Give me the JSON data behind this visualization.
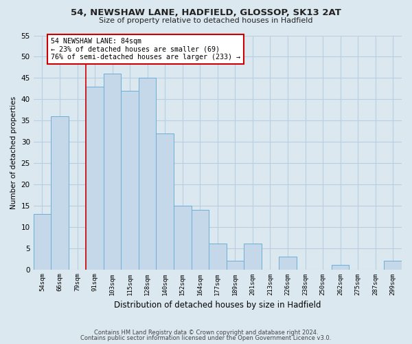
{
  "title": "54, NEWSHAW LANE, HADFIELD, GLOSSOP, SK13 2AT",
  "subtitle": "Size of property relative to detached houses in Hadfield",
  "xlabel": "Distribution of detached houses by size in Hadfield",
  "ylabel": "Number of detached properties",
  "bin_labels": [
    "54sqm",
    "66sqm",
    "79sqm",
    "91sqm",
    "103sqm",
    "115sqm",
    "128sqm",
    "140sqm",
    "152sqm",
    "164sqm",
    "177sqm",
    "189sqm",
    "201sqm",
    "213sqm",
    "226sqm",
    "238sqm",
    "250sqm",
    "262sqm",
    "275sqm",
    "287sqm",
    "299sqm"
  ],
  "bar_values": [
    13,
    36,
    0,
    43,
    46,
    42,
    45,
    32,
    15,
    14,
    6,
    2,
    6,
    0,
    3,
    0,
    0,
    1,
    0,
    0,
    2
  ],
  "bar_color": "#c5d8ea",
  "bar_edge_color": "#6baed6",
  "ylim": [
    0,
    55
  ],
  "yticks": [
    0,
    5,
    10,
    15,
    20,
    25,
    30,
    35,
    40,
    45,
    50,
    55
  ],
  "vline_x_idx": 2,
  "vline_color": "#cc0000",
  "annotation_title": "54 NEWSHAW LANE: 84sqm",
  "annotation_line2": "← 23% of detached houses are smaller (69)",
  "annotation_line3": "76% of semi-detached houses are larger (233) →",
  "annotation_box_color": "#ffffff",
  "annotation_border_color": "#cc0000",
  "footer_line1": "Contains HM Land Registry data © Crown copyright and database right 2024.",
  "footer_line2": "Contains public sector information licensed under the Open Government Licence v3.0.",
  "bg_color": "#dce8f0",
  "plot_bg_color": "#dce8f0",
  "grid_color": "#b8cfe0"
}
